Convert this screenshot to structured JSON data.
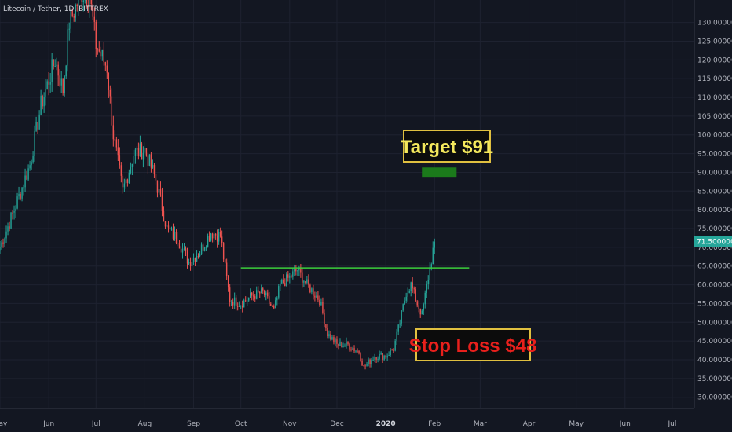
{
  "chart_data": {
    "type": "candlestick",
    "title": "Litecoin / Tether, 1D, BITTREX",
    "ylim": [
      27,
      136
    ],
    "y_ticks": [
      30,
      35,
      40,
      45,
      50,
      55,
      60,
      65,
      70,
      75,
      80,
      85,
      90,
      95,
      100,
      105,
      110,
      115,
      120,
      125,
      130
    ],
    "y_tick_labels": [
      "30.00000000",
      "35.00000000",
      "40.00000000",
      "45.00000000",
      "50.00000000",
      "55.00000000",
      "60.00000000",
      "65.00000000",
      "70.00000000",
      "75.00000000",
      "80.00000000",
      "85.00000000",
      "90.00000000",
      "95.00000000",
      "100.00000000",
      "105.00000000",
      "110.00000000",
      "115.00000000",
      "120.00000000",
      "125.00000000",
      "130.00000000"
    ],
    "x_ticks": [
      "May",
      "Jun",
      "Jul",
      "Aug",
      "Sep",
      "Oct",
      "Nov",
      "Dec",
      "2020",
      "Feb",
      "Mar",
      "Apr",
      "May",
      "Jun",
      "Jul"
    ],
    "x_start": "2019-05-01",
    "x_end": "2020-07-15",
    "price_path": [
      [
        "2019-05-01",
        70
      ],
      [
        "2019-05-10",
        80
      ],
      [
        "2019-05-20",
        92
      ],
      [
        "2019-05-27",
        108
      ],
      [
        "2019-06-05",
        120
      ],
      [
        "2019-06-10",
        112
      ],
      [
        "2019-06-14",
        130
      ],
      [
        "2019-06-22",
        138
      ],
      [
        "2019-06-27",
        137
      ],
      [
        "2019-07-01",
        124
      ],
      [
        "2019-07-08",
        118
      ],
      [
        "2019-07-12",
        100
      ],
      [
        "2019-07-18",
        85
      ],
      [
        "2019-07-25",
        95
      ],
      [
        "2019-08-01",
        96
      ],
      [
        "2019-08-08",
        88
      ],
      [
        "2019-08-15",
        75
      ],
      [
        "2019-08-22",
        72
      ],
      [
        "2019-08-29",
        66
      ],
      [
        "2019-09-05",
        69
      ],
      [
        "2019-09-12",
        74
      ],
      [
        "2019-09-18",
        73
      ],
      [
        "2019-09-24",
        56
      ],
      [
        "2019-10-01",
        55
      ],
      [
        "2019-10-08",
        57
      ],
      [
        "2019-10-15",
        58
      ],
      [
        "2019-10-22",
        53
      ],
      [
        "2019-10-26",
        60
      ],
      [
        "2019-11-01",
        62
      ],
      [
        "2019-11-06",
        64
      ],
      [
        "2019-11-12",
        60
      ],
      [
        "2019-11-20",
        56
      ],
      [
        "2019-11-25",
        47
      ],
      [
        "2019-12-01",
        44
      ],
      [
        "2019-12-08",
        44
      ],
      [
        "2019-12-15",
        42
      ],
      [
        "2019-12-18",
        38
      ],
      [
        "2019-12-25",
        41
      ],
      [
        "2020-01-01",
        41
      ],
      [
        "2020-01-06",
        43
      ],
      [
        "2020-01-10",
        50
      ],
      [
        "2020-01-14",
        58
      ],
      [
        "2020-01-17",
        60
      ],
      [
        "2020-01-21",
        55
      ],
      [
        "2020-01-24",
        52
      ],
      [
        "2020-01-28",
        62
      ],
      [
        "2020-02-01",
        71.5
      ]
    ],
    "last_price": 71.5,
    "last_price_label": "71.50000000",
    "resistance_line": {
      "from": "2019-10-01",
      "to": "2020-02-23",
      "price": 64.5
    },
    "target": {
      "label": "Target $91",
      "zone_from": "2020-01-24",
      "zone_to": "2020-02-15",
      "price_low": 88.8,
      "price_high": 91.3
    },
    "stop_loss": {
      "label": "Stop Loss $48"
    },
    "colors": {
      "background": "#131722",
      "up": "#26a69a",
      "down": "#ef5350",
      "grid": "#1e2230",
      "axis_text": "#b2b5be",
      "resistance": "#3cd03c",
      "target_zone": "#1b7a1b",
      "box_fill": "#0c0c0c",
      "box_border": "#e0c040",
      "target_text": "#f4e85c",
      "stop_text": "#e8201c",
      "price_tag": "#26a69a"
    }
  }
}
